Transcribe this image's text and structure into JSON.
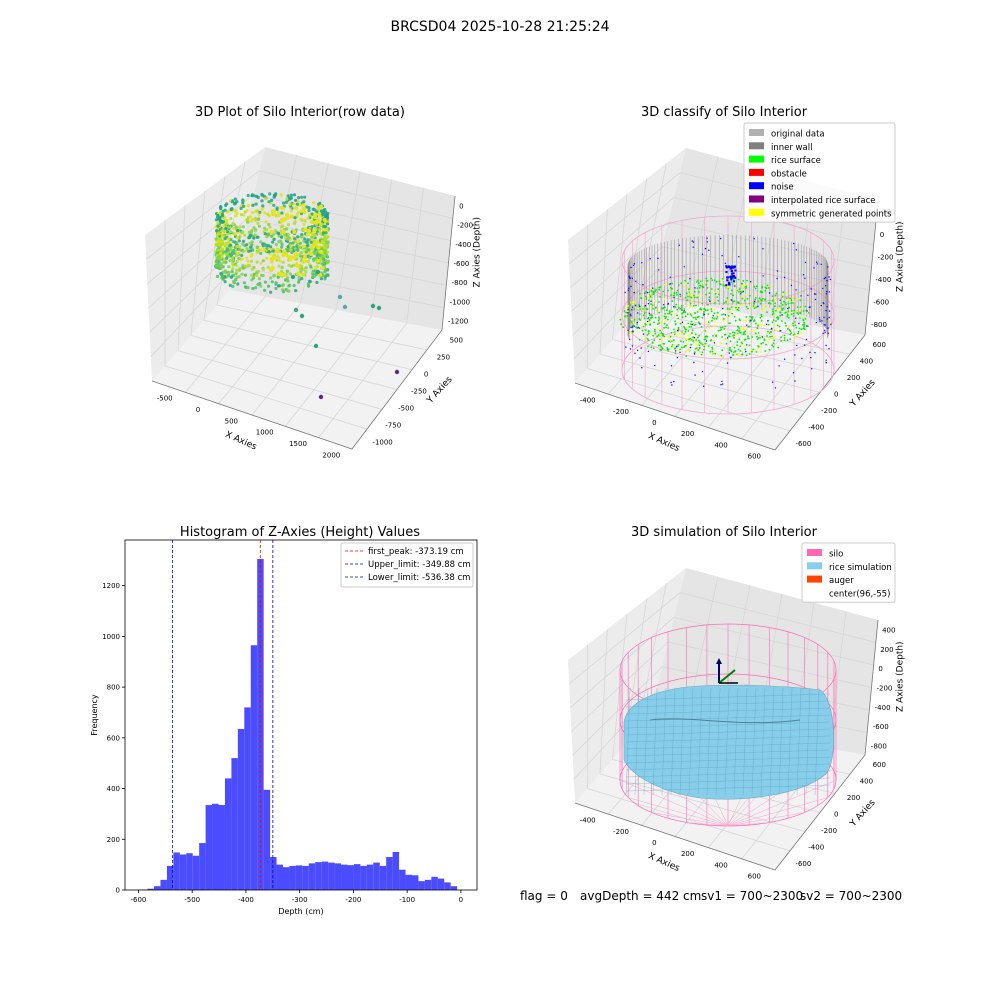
{
  "suptitle": "BRCSD04 2025-10-28 21:25:24",
  "footer": {
    "flag": "flag = 0",
    "avg": "avgDepth = 442 cm",
    "sv1": "sv1 = 700~2300",
    "sv2": "sv2 = 700~2300"
  },
  "chart_data": [
    {
      "type": "scatter",
      "title": "3D Plot of Silo Interior(row data)",
      "xlabel": "X Axies",
      "ylabel": "Y Axies",
      "zlabel": "Z Axies (Depth)",
      "x_ticks": [
        "-500",
        "0",
        "500",
        "1000",
        "1500",
        "2000"
      ],
      "y_ticks": [
        "500",
        "250",
        "0",
        "-250",
        "-500",
        "-750",
        "-1000"
      ],
      "z_ticks": [
        "0",
        "-200",
        "-400",
        "-600",
        "-800",
        "-1000",
        "-1200"
      ],
      "colormap": "viridis"
    },
    {
      "type": "scatter",
      "title": "3D classify of Silo Interior",
      "xlabel": "X Axies",
      "ylabel": "Y Axies",
      "zlabel": "Z Axies (Depth)",
      "x_ticks": [
        "-400",
        "-200",
        "0",
        "200",
        "400",
        "600"
      ],
      "y_ticks": [
        "600",
        "400",
        "200",
        "0",
        "-200",
        "-400",
        "-600"
      ],
      "z_ticks": [
        "200",
        "0",
        "-200",
        "-400",
        "-600",
        "-800"
      ],
      "z_top_tick": "00",
      "legend": [
        {
          "label": "original data",
          "color": "#b0b0b0"
        },
        {
          "label": "inner wall",
          "color": "#808080"
        },
        {
          "label": "rice surface",
          "color": "#00ff00"
        },
        {
          "label": "obstacle",
          "color": "#ff0000"
        },
        {
          "label": "noise",
          "color": "#0000ff"
        },
        {
          "label": "interpolated rice surface",
          "color": "#800080"
        },
        {
          "label": "symmetric generated points",
          "color": "#ffff00"
        }
      ],
      "legend_loc": "upper right"
    },
    {
      "type": "bar",
      "title": "Histogram of Z-Axies (Height) Values",
      "xlabel": "Depth (cm)",
      "ylabel": "Frequency",
      "xlim": [
        -625,
        30
      ],
      "ylim": [
        0,
        1380
      ],
      "x_ticks": [
        -600,
        -500,
        -400,
        -300,
        -200,
        -100,
        0
      ],
      "y_ticks": [
        0,
        200,
        400,
        600,
        800,
        1000,
        1200
      ],
      "bar_color": "#4b4bff",
      "bin_edges": [
        -595,
        -583,
        -571,
        -559,
        -547,
        -535,
        -523,
        -511,
        -499,
        -487,
        -475,
        -463,
        -451,
        -439,
        -427,
        -415,
        -403,
        -391,
        -379,
        -367,
        -355,
        -343,
        -331,
        -319,
        -307,
        -295,
        -283,
        -271,
        -259,
        -247,
        -235,
        -223,
        -211,
        -199,
        -187,
        -175,
        -163,
        -151,
        -139,
        -127,
        -115,
        -103,
        -91,
        -79,
        -67,
        -55,
        -43,
        -31,
        -19,
        -7
      ],
      "values": [
        2,
        5,
        15,
        40,
        95,
        148,
        140,
        145,
        135,
        185,
        335,
        340,
        335,
        440,
        520,
        635,
        720,
        965,
        1305,
        395,
        130,
        100,
        90,
        95,
        97,
        95,
        105,
        110,
        112,
        108,
        105,
        100,
        98,
        102,
        95,
        100,
        108,
        95,
        130,
        150,
        80,
        60,
        58,
        35,
        40,
        52,
        45,
        30,
        15
      ],
      "lines": [
        {
          "label": "first_peak: -373.19 cm",
          "x": -373.19,
          "color": "#ff0000"
        },
        {
          "label": "Upper_limit: -349.88 cm",
          "x": -349.88,
          "color": "#0000cc"
        },
        {
          "label": "Lower_limit: -536.38 cm",
          "x": -536.38,
          "color": "#0000cc"
        }
      ],
      "legend_loc": "upper right"
    },
    {
      "type": "scatter",
      "title": "3D simulation of Silo Interior",
      "xlabel": "X Axies",
      "ylabel": "Y Axies",
      "zlabel": "Z Axies (Depth)",
      "x_ticks": [
        "-400",
        "-200",
        "0",
        "200",
        "400",
        "600"
      ],
      "y_ticks": [
        "600",
        "400",
        "200",
        "0",
        "-200",
        "-400",
        "-600"
      ],
      "z_ticks": [
        "400",
        "200",
        "0",
        "-200",
        "-400",
        "-600",
        "-800"
      ],
      "legend": [
        {
          "label": "silo",
          "color": "#ff69b4"
        },
        {
          "label": "rice simulation",
          "color": "#87ceeb"
        },
        {
          "label": "auger",
          "color": "#ff4500"
        },
        {
          "label": "center(96,-55)",
          "color": ""
        }
      ],
      "legend_loc": "upper right"
    }
  ]
}
